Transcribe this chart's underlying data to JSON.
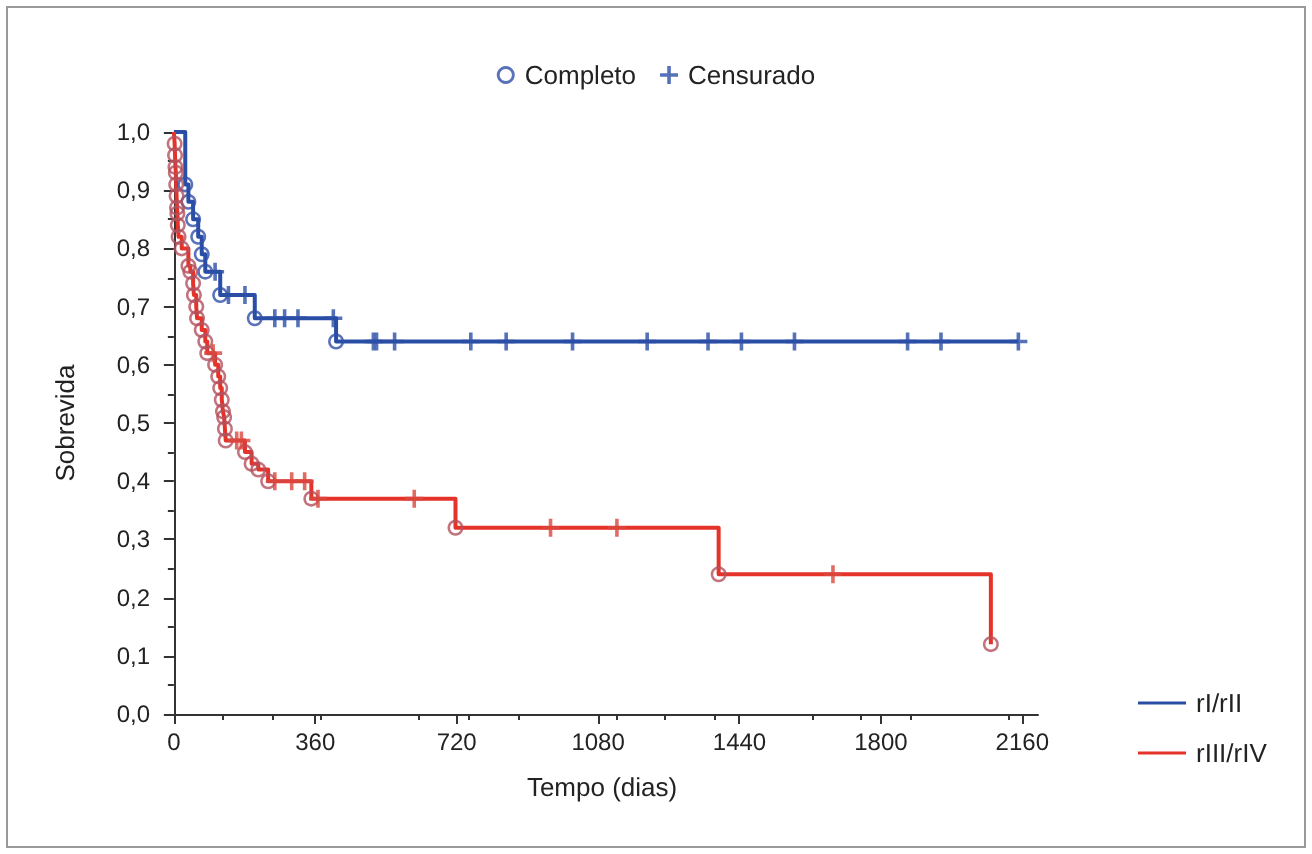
{
  "chart_data": {
    "type": "step",
    "xlabel": "Tempo (dias)",
    "ylabel": "Sobrevida",
    "legend": "top",
    "xlim": [
      -20,
      2200
    ],
    "xticks": [
      0,
      360,
      720,
      1080,
      1440,
      1800,
      2160
    ],
    "ylim": [
      0,
      1
    ],
    "yticks": [
      {
        "value": 0,
        "label": "0,0"
      },
      {
        "value": 0.1,
        "label": "0,1"
      },
      {
        "value": 0.2,
        "label": "0,2"
      },
      {
        "value": 0.3,
        "label": "0,3"
      },
      {
        "value": 0.4,
        "label": "0,4"
      },
      {
        "value": 0.5,
        "label": "0,5"
      },
      {
        "value": 0.6,
        "label": "0,6"
      },
      {
        "value": 0.7,
        "label": "0,7"
      },
      {
        "value": 0.8,
        "label": "0,8"
      },
      {
        "value": 0.9,
        "label": "0,9"
      },
      {
        "value": 1,
        "label": "1,0"
      }
    ],
    "series": [
      {
        "name": "rI/rII",
        "color": "#2a4ea6",
        "x": [
          0,
          29,
          37,
          49,
          62,
          71,
          80,
          105,
          118,
          139,
          181,
          206,
          257,
          282,
          316,
          406,
          413,
          508,
          516,
          562,
          756,
          846,
          1015,
          1205,
          1360,
          1445,
          1580,
          1868,
          1953,
          2150
        ],
        "values": [
          1.0,
          0.91,
          0.88,
          0.85,
          0.82,
          0.79,
          0.76,
          0.76,
          0.72,
          0.72,
          0.72,
          0.68,
          0.68,
          0.68,
          0.68,
          0.68,
          0.64,
          0.64,
          0.64,
          0.64,
          0.64,
          0.64,
          0.64,
          0.64,
          0.64,
          0.64,
          0.64,
          0.64,
          0.64,
          0.64
        ]
      },
      {
        "name": "rIII/rIV",
        "color": "#e5332a",
        "x": [
          0,
          2,
          3,
          4,
          5,
          6,
          7,
          8,
          9,
          10,
          12,
          20,
          37,
          42,
          49,
          51,
          57,
          59,
          71,
          80,
          85,
          100,
          105,
          113,
          118,
          122,
          125,
          128,
          130,
          132,
          160,
          172,
          181,
          198,
          215,
          240,
          257,
          300,
          333,
          350,
          367,
          612,
          717,
          959,
          1128,
          1387,
          1678,
          2080
        ],
        "values": [
          1.0,
          0.98,
          0.96,
          0.94,
          0.93,
          0.91,
          0.89,
          0.87,
          0.86,
          0.84,
          0.82,
          0.8,
          0.77,
          0.76,
          0.74,
          0.72,
          0.7,
          0.68,
          0.66,
          0.64,
          0.62,
          0.62,
          0.6,
          0.58,
          0.56,
          0.54,
          0.52,
          0.51,
          0.49,
          0.47,
          0.47,
          0.47,
          0.45,
          0.43,
          0.42,
          0.4,
          0.4,
          0.4,
          0.4,
          0.37,
          0.37,
          0.37,
          0.32,
          0.32,
          0.32,
          0.24,
          0.24,
          0.12
        ]
      },
      {
        "name": "Completo",
        "type": "scatter",
        "marker": "circle",
        "color": "#2f4fa8",
        "x": [
          29,
          37,
          49,
          62,
          71,
          80,
          118,
          206,
          413,
          2,
          3,
          4,
          5,
          6,
          7,
          8,
          9,
          10,
          12,
          20,
          37,
          42,
          49,
          51,
          57,
          59,
          71,
          80,
          85,
          105,
          113,
          118,
          122,
          125,
          128,
          130,
          132,
          181,
          198,
          215,
          240,
          350,
          717,
          1387,
          2080
        ],
        "values": [
          0.91,
          0.88,
          0.85,
          0.82,
          0.79,
          0.76,
          0.72,
          0.68,
          0.64,
          0.98,
          0.96,
          0.94,
          0.93,
          0.91,
          0.89,
          0.87,
          0.86,
          0.84,
          0.82,
          0.8,
          0.77,
          0.76,
          0.74,
          0.72,
          0.7,
          0.68,
          0.66,
          0.64,
          0.62,
          0.6,
          0.58,
          0.56,
          0.54,
          0.52,
          0.51,
          0.49,
          0.47,
          0.45,
          0.43,
          0.42,
          0.4,
          0.37,
          0.32,
          0.24,
          0.12
        ],
        "colors": [
          "#2f4fa8",
          "#2f4fa8",
          "#2f4fa8",
          "#2f4fa8",
          "#2f4fa8",
          "#2f4fa8",
          "#2f4fa8",
          "#2f4fa8",
          "#2f4fa8",
          "#b3505e",
          "#b3505e",
          "#b3505e",
          "#b3505e",
          "#b3505e",
          "#b3505e",
          "#b3505e",
          "#b3505e",
          "#b3505e",
          "#b3505e",
          "#b3505e",
          "#b3505e",
          "#b3505e",
          "#b3505e",
          "#b3505e",
          "#b3505e",
          "#b3505e",
          "#b3505e",
          "#b3505e",
          "#b3505e",
          "#b3505e",
          "#b3505e",
          "#b3505e",
          "#b3505e",
          "#b3505e",
          "#b3505e",
          "#b3505e",
          "#b3505e",
          "#b3505e",
          "#b3505e",
          "#b3505e",
          "#b3505e",
          "#b3505e",
          "#b3505e",
          "#b3505e",
          "#b3505e"
        ]
      },
      {
        "name": "Censurado",
        "type": "scatter",
        "marker": "cross",
        "color": "#2a4ea6",
        "x": [
          105,
          139,
          181,
          257,
          282,
          316,
          406,
          508,
          516,
          562,
          756,
          846,
          1015,
          1205,
          1360,
          1445,
          1580,
          1868,
          1953,
          2150,
          100,
          160,
          172,
          257,
          300,
          333,
          367,
          612,
          959,
          1128,
          1678
        ],
        "values": [
          0.76,
          0.72,
          0.72,
          0.68,
          0.68,
          0.68,
          0.68,
          0.64,
          0.64,
          0.64,
          0.64,
          0.64,
          0.64,
          0.64,
          0.64,
          0.64,
          0.64,
          0.64,
          0.64,
          0.64,
          0.62,
          0.47,
          0.47,
          0.4,
          0.4,
          0.4,
          0.37,
          0.37,
          0.32,
          0.32,
          0.24
        ],
        "colors": [
          "#2a4ea6",
          "#2a4ea6",
          "#2a4ea6",
          "#2a4ea6",
          "#2a4ea6",
          "#2a4ea6",
          "#2a4ea6",
          "#2a4ea6",
          "#2a4ea6",
          "#2a4ea6",
          "#2a4ea6",
          "#2a4ea6",
          "#2a4ea6",
          "#2a4ea6",
          "#2a4ea6",
          "#2a4ea6",
          "#2a4ea6",
          "#2a4ea6",
          "#2a4ea6",
          "#2a4ea6",
          "#d9473f",
          "#d9473f",
          "#d9473f",
          "#d9473f",
          "#d9473f",
          "#d9473f",
          "#d9473f",
          "#d9473f",
          "#d9473f",
          "#d9473f",
          "#d9473f"
        ]
      }
    ]
  }
}
